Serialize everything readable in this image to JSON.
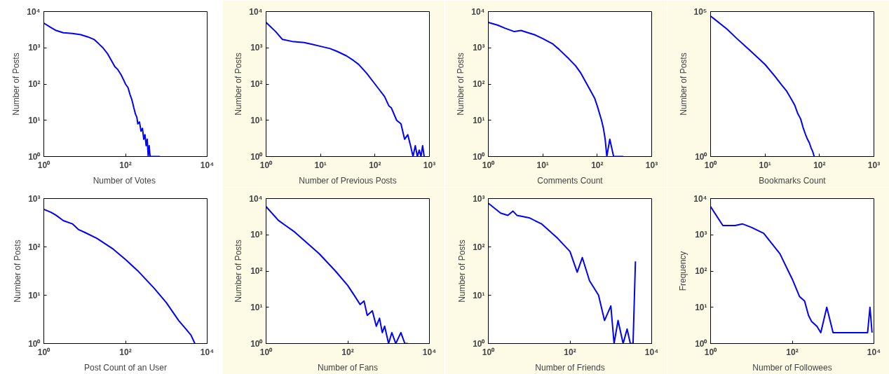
{
  "chart_data": [
    {
      "type": "line",
      "xlabel": "Number of  Votes",
      "ylabel": "Number of Posts",
      "log": "xy",
      "grid": false,
      "xlim": [
        1,
        10000
      ],
      "ylim": [
        1,
        10000
      ],
      "xticks": [
        {
          "value": 1,
          "label": "10⁰"
        },
        {
          "value": 100,
          "label": "10²"
        },
        {
          "value": 10000,
          "label": "10⁴"
        }
      ],
      "yticks": [
        {
          "value": 1,
          "label": "10⁰"
        },
        {
          "value": 10,
          "label": "10¹"
        },
        {
          "value": 100,
          "label": "10²"
        },
        {
          "value": 1000,
          "label": "10³"
        },
        {
          "value": 10000,
          "label": "10⁴"
        }
      ],
      "series": [
        {
          "color": "#0000ff",
          "x": [
            1,
            1.5,
            2,
            3,
            5,
            8,
            12,
            17,
            22,
            28,
            36,
            45,
            55,
            65,
            78,
            90,
            100,
            115,
            130,
            140,
            150,
            160,
            175,
            190,
            200,
            220,
            240,
            260,
            280,
            300,
            320,
            340,
            360,
            380,
            400,
            500,
            600,
            700
          ],
          "values": [
            4800,
            3600,
            3000,
            2600,
            2500,
            2300,
            2000,
            1700,
            1300,
            1000,
            700,
            450,
            300,
            250,
            180,
            130,
            100,
            80,
            50,
            40,
            30,
            22,
            15,
            12,
            8,
            9,
            5,
            6,
            3,
            4,
            2,
            3,
            1,
            2,
            1,
            1,
            1,
            1
          ]
        }
      ]
    },
    {
      "type": "line",
      "xlabel": "Number of Previous Posts",
      "ylabel": "Number of Posts",
      "log": "xy",
      "grid": false,
      "xlim": [
        1,
        1000
      ],
      "ylim": [
        1,
        10000
      ],
      "xticks": [
        {
          "value": 1,
          "label": "10⁰"
        },
        {
          "value": 10,
          "label": "10¹"
        },
        {
          "value": 100,
          "label": "10²"
        },
        {
          "value": 1000,
          "label": "10³"
        }
      ],
      "yticks": [
        {
          "value": 1,
          "label": "10⁰"
        },
        {
          "value": 10,
          "label": "10¹"
        },
        {
          "value": 100,
          "label": "10²"
        },
        {
          "value": 1000,
          "label": "10³"
        },
        {
          "value": 10000,
          "label": "10⁴"
        }
      ],
      "series": [
        {
          "color": "#0000ff",
          "x": [
            1,
            1.5,
            2,
            3,
            5,
            7,
            10,
            15,
            20,
            30,
            40,
            50,
            70,
            100,
            120,
            150,
            180,
            200,
            250,
            300,
            350,
            400,
            450,
            500,
            550,
            600,
            650,
            700,
            750,
            800
          ],
          "values": [
            5000,
            2800,
            1700,
            1500,
            1400,
            1250,
            1100,
            950,
            800,
            600,
            450,
            350,
            200,
            100,
            70,
            45,
            25,
            22,
            10,
            8,
            3,
            4,
            2,
            1,
            2,
            1,
            1.5,
            1,
            2,
            1
          ]
        }
      ]
    },
    {
      "type": "line",
      "xlabel": "Comments Count",
      "ylabel": "Number of Posts",
      "log": "xy",
      "grid": false,
      "xlim": [
        1,
        1000
      ],
      "ylim": [
        1,
        10000
      ],
      "xticks": [
        {
          "value": 1,
          "label": "10⁰"
        },
        {
          "value": 10,
          "label": "10¹"
        },
        {
          "value": 100,
          "label": "10²"
        },
        {
          "value": 1000,
          "label": "10³"
        }
      ],
      "yticks": [
        {
          "value": 1,
          "label": "10⁰"
        },
        {
          "value": 10,
          "label": "10¹"
        },
        {
          "value": 100,
          "label": "10²"
        },
        {
          "value": 1000,
          "label": "10³"
        },
        {
          "value": 10000,
          "label": "10⁴"
        }
      ],
      "series": [
        {
          "color": "#0000ff",
          "x": [
            1,
            1.5,
            2,
            3,
            4,
            5,
            7,
            10,
            15,
            20,
            30,
            40,
            50,
            70,
            90,
            100,
            120,
            130,
            140,
            150,
            170,
            200,
            250,
            300
          ],
          "values": [
            5000,
            4200,
            3500,
            2800,
            3000,
            2700,
            2300,
            1800,
            1300,
            900,
            500,
            320,
            200,
            80,
            40,
            25,
            10,
            6,
            3,
            1,
            3,
            1,
            1,
            1
          ]
        }
      ]
    },
    {
      "type": "line",
      "xlabel": "Bookmarks Count",
      "ylabel": "Number of Posts",
      "log": "xy",
      "grid": false,
      "xlim": [
        1,
        1000
      ],
      "ylim": [
        1,
        100000
      ],
      "xticks": [
        {
          "value": 1,
          "label": "10⁰"
        },
        {
          "value": 10,
          "label": "10¹"
        },
        {
          "value": 100,
          "label": "10²"
        },
        {
          "value": 1000,
          "label": "10³"
        }
      ],
      "yticks": [
        {
          "value": 1,
          "label": "10⁰"
        },
        {
          "value": 100000,
          "label": "10⁵"
        }
      ],
      "series": [
        {
          "color": "#0000ff",
          "x": [
            1,
            2,
            3,
            5,
            7,
            10,
            15,
            20,
            25,
            30,
            35,
            40,
            45,
            50,
            55,
            60,
            65,
            70,
            75,
            80
          ],
          "values": [
            70000,
            25000,
            12000,
            5000,
            2800,
            1500,
            600,
            300,
            180,
            100,
            60,
            30,
            20,
            10,
            6,
            4,
            3,
            2,
            1.5,
            1
          ]
        }
      ]
    },
    {
      "type": "line",
      "xlabel": "Post Count of an User",
      "ylabel": "Number of Posts",
      "log": "xy",
      "grid": false,
      "xlim": [
        1,
        10000
      ],
      "ylim": [
        1,
        1000
      ],
      "xticks": [
        {
          "value": 1,
          "label": "10⁰"
        },
        {
          "value": 100,
          "label": "10²"
        },
        {
          "value": 10000,
          "label": "10⁴"
        }
      ],
      "yticks": [
        {
          "value": 1,
          "label": "10⁰"
        },
        {
          "value": 10,
          "label": "10¹"
        },
        {
          "value": 100,
          "label": "10²"
        },
        {
          "value": 1000,
          "label": "10³"
        }
      ],
      "series": [
        {
          "color": "#0000ff",
          "x": [
            1,
            1.5,
            2,
            3,
            5,
            7,
            10,
            20,
            50,
            100,
            200,
            500,
            1000,
            2000,
            3000,
            4000,
            5000
          ],
          "values": [
            600,
            520,
            450,
            350,
            300,
            230,
            200,
            150,
            90,
            55,
            32,
            14,
            7,
            3,
            2,
            1.5,
            1
          ]
        }
      ]
    },
    {
      "type": "line",
      "xlabel": "Number of Fans",
      "ylabel": "Number of Posts",
      "log": "xy",
      "grid": false,
      "xlim": [
        1,
        10000
      ],
      "ylim": [
        1,
        10000
      ],
      "xticks": [
        {
          "value": 1,
          "label": "10⁰"
        },
        {
          "value": 100,
          "label": "10²"
        },
        {
          "value": 10000,
          "label": "10⁴"
        }
      ],
      "yticks": [
        {
          "value": 1,
          "label": "10⁰"
        },
        {
          "value": 10,
          "label": "10¹"
        },
        {
          "value": 100,
          "label": "10²"
        },
        {
          "value": 1000,
          "label": "10³"
        },
        {
          "value": 10000,
          "label": "10⁴"
        }
      ],
      "series": [
        {
          "color": "#0000ff",
          "x": [
            1,
            2,
            3,
            5,
            10,
            20,
            50,
            100,
            150,
            200,
            250,
            300,
            400,
            500,
            600,
            700,
            800,
            1000,
            1200,
            1500,
            2000,
            2500,
            3000
          ],
          "values": [
            6000,
            2500,
            1800,
            1200,
            600,
            300,
            100,
            40,
            20,
            12,
            15,
            6,
            8,
            3,
            5,
            2,
            3,
            1,
            2,
            1,
            2,
            1,
            1
          ]
        }
      ]
    },
    {
      "type": "line",
      "xlabel": "Number of Friends",
      "ylabel": "Number of Posts",
      "log": "xy",
      "grid": false,
      "xlim": [
        1,
        10000
      ],
      "ylim": [
        1,
        1000
      ],
      "xticks": [
        {
          "value": 1,
          "label": "10⁰"
        },
        {
          "value": 100,
          "label": "10²"
        },
        {
          "value": 10000,
          "label": "10⁴"
        }
      ],
      "yticks": [
        {
          "value": 1,
          "label": "10⁰"
        },
        {
          "value": 10,
          "label": "10¹"
        },
        {
          "value": 100,
          "label": "10²"
        },
        {
          "value": 1000,
          "label": "10³"
        }
      ],
      "series": [
        {
          "color": "#0000ff",
          "x": [
            1,
            2,
            3,
            4,
            5,
            10,
            20,
            50,
            100,
            150,
            200,
            300,
            500,
            700,
            1000,
            1200,
            1500,
            2000,
            2500,
            3000,
            3500,
            4000
          ],
          "values": [
            800,
            500,
            450,
            550,
            450,
            400,
            300,
            150,
            80,
            30,
            60,
            20,
            10,
            3,
            6,
            1,
            3,
            1,
            2,
            1,
            1,
            50
          ]
        }
      ]
    },
    {
      "type": "line",
      "xlabel": "Number of Followees",
      "ylabel": "Frequency",
      "log": "xy",
      "grid": false,
      "xlim": [
        1,
        10000
      ],
      "ylim": [
        1,
        10000
      ],
      "xticks": [
        {
          "value": 1,
          "label": "10⁰"
        },
        {
          "value": 100,
          "label": "10²"
        },
        {
          "value": 10000,
          "label": "10⁴"
        }
      ],
      "yticks": [
        {
          "value": 1,
          "label": "10⁰"
        },
        {
          "value": 10,
          "label": "10¹"
        },
        {
          "value": 100,
          "label": "10²"
        },
        {
          "value": 1000,
          "label": "10³"
        },
        {
          "value": 10000,
          "label": "10⁴"
        }
      ],
      "series": [
        {
          "color": "#0000ff",
          "x": [
            1,
            2,
            4,
            6,
            10,
            20,
            50,
            80,
            100,
            150,
            200,
            250,
            300,
            400,
            500,
            700,
            1000,
            1500,
            2000,
            3000,
            5000,
            7000,
            8000,
            9000
          ],
          "values": [
            6000,
            1800,
            1800,
            2000,
            1600,
            1100,
            300,
            100,
            60,
            20,
            15,
            6,
            4,
            3,
            2,
            10,
            2,
            2,
            2,
            2,
            2,
            2,
            10,
            2
          ]
        }
      ]
    }
  ]
}
